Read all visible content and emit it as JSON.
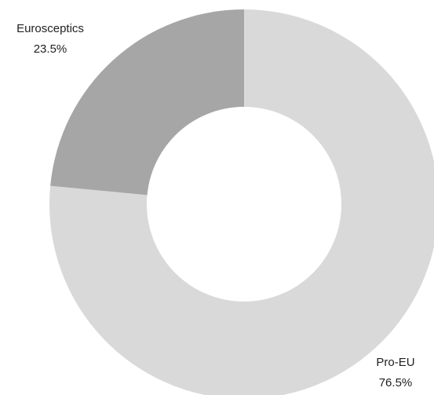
{
  "chart_data": {
    "type": "pie",
    "donut": true,
    "title": "",
    "categories": [
      "Pro-EU",
      "Eurosceptics"
    ],
    "values": [
      76.5,
      23.5
    ],
    "value_labels": [
      "76.5%",
      "23.5%"
    ],
    "colors": [
      "#d9d9d9",
      "#a6a6a6"
    ],
    "start_angle_deg": 0,
    "direction": "clockwise",
    "legend": "none"
  }
}
